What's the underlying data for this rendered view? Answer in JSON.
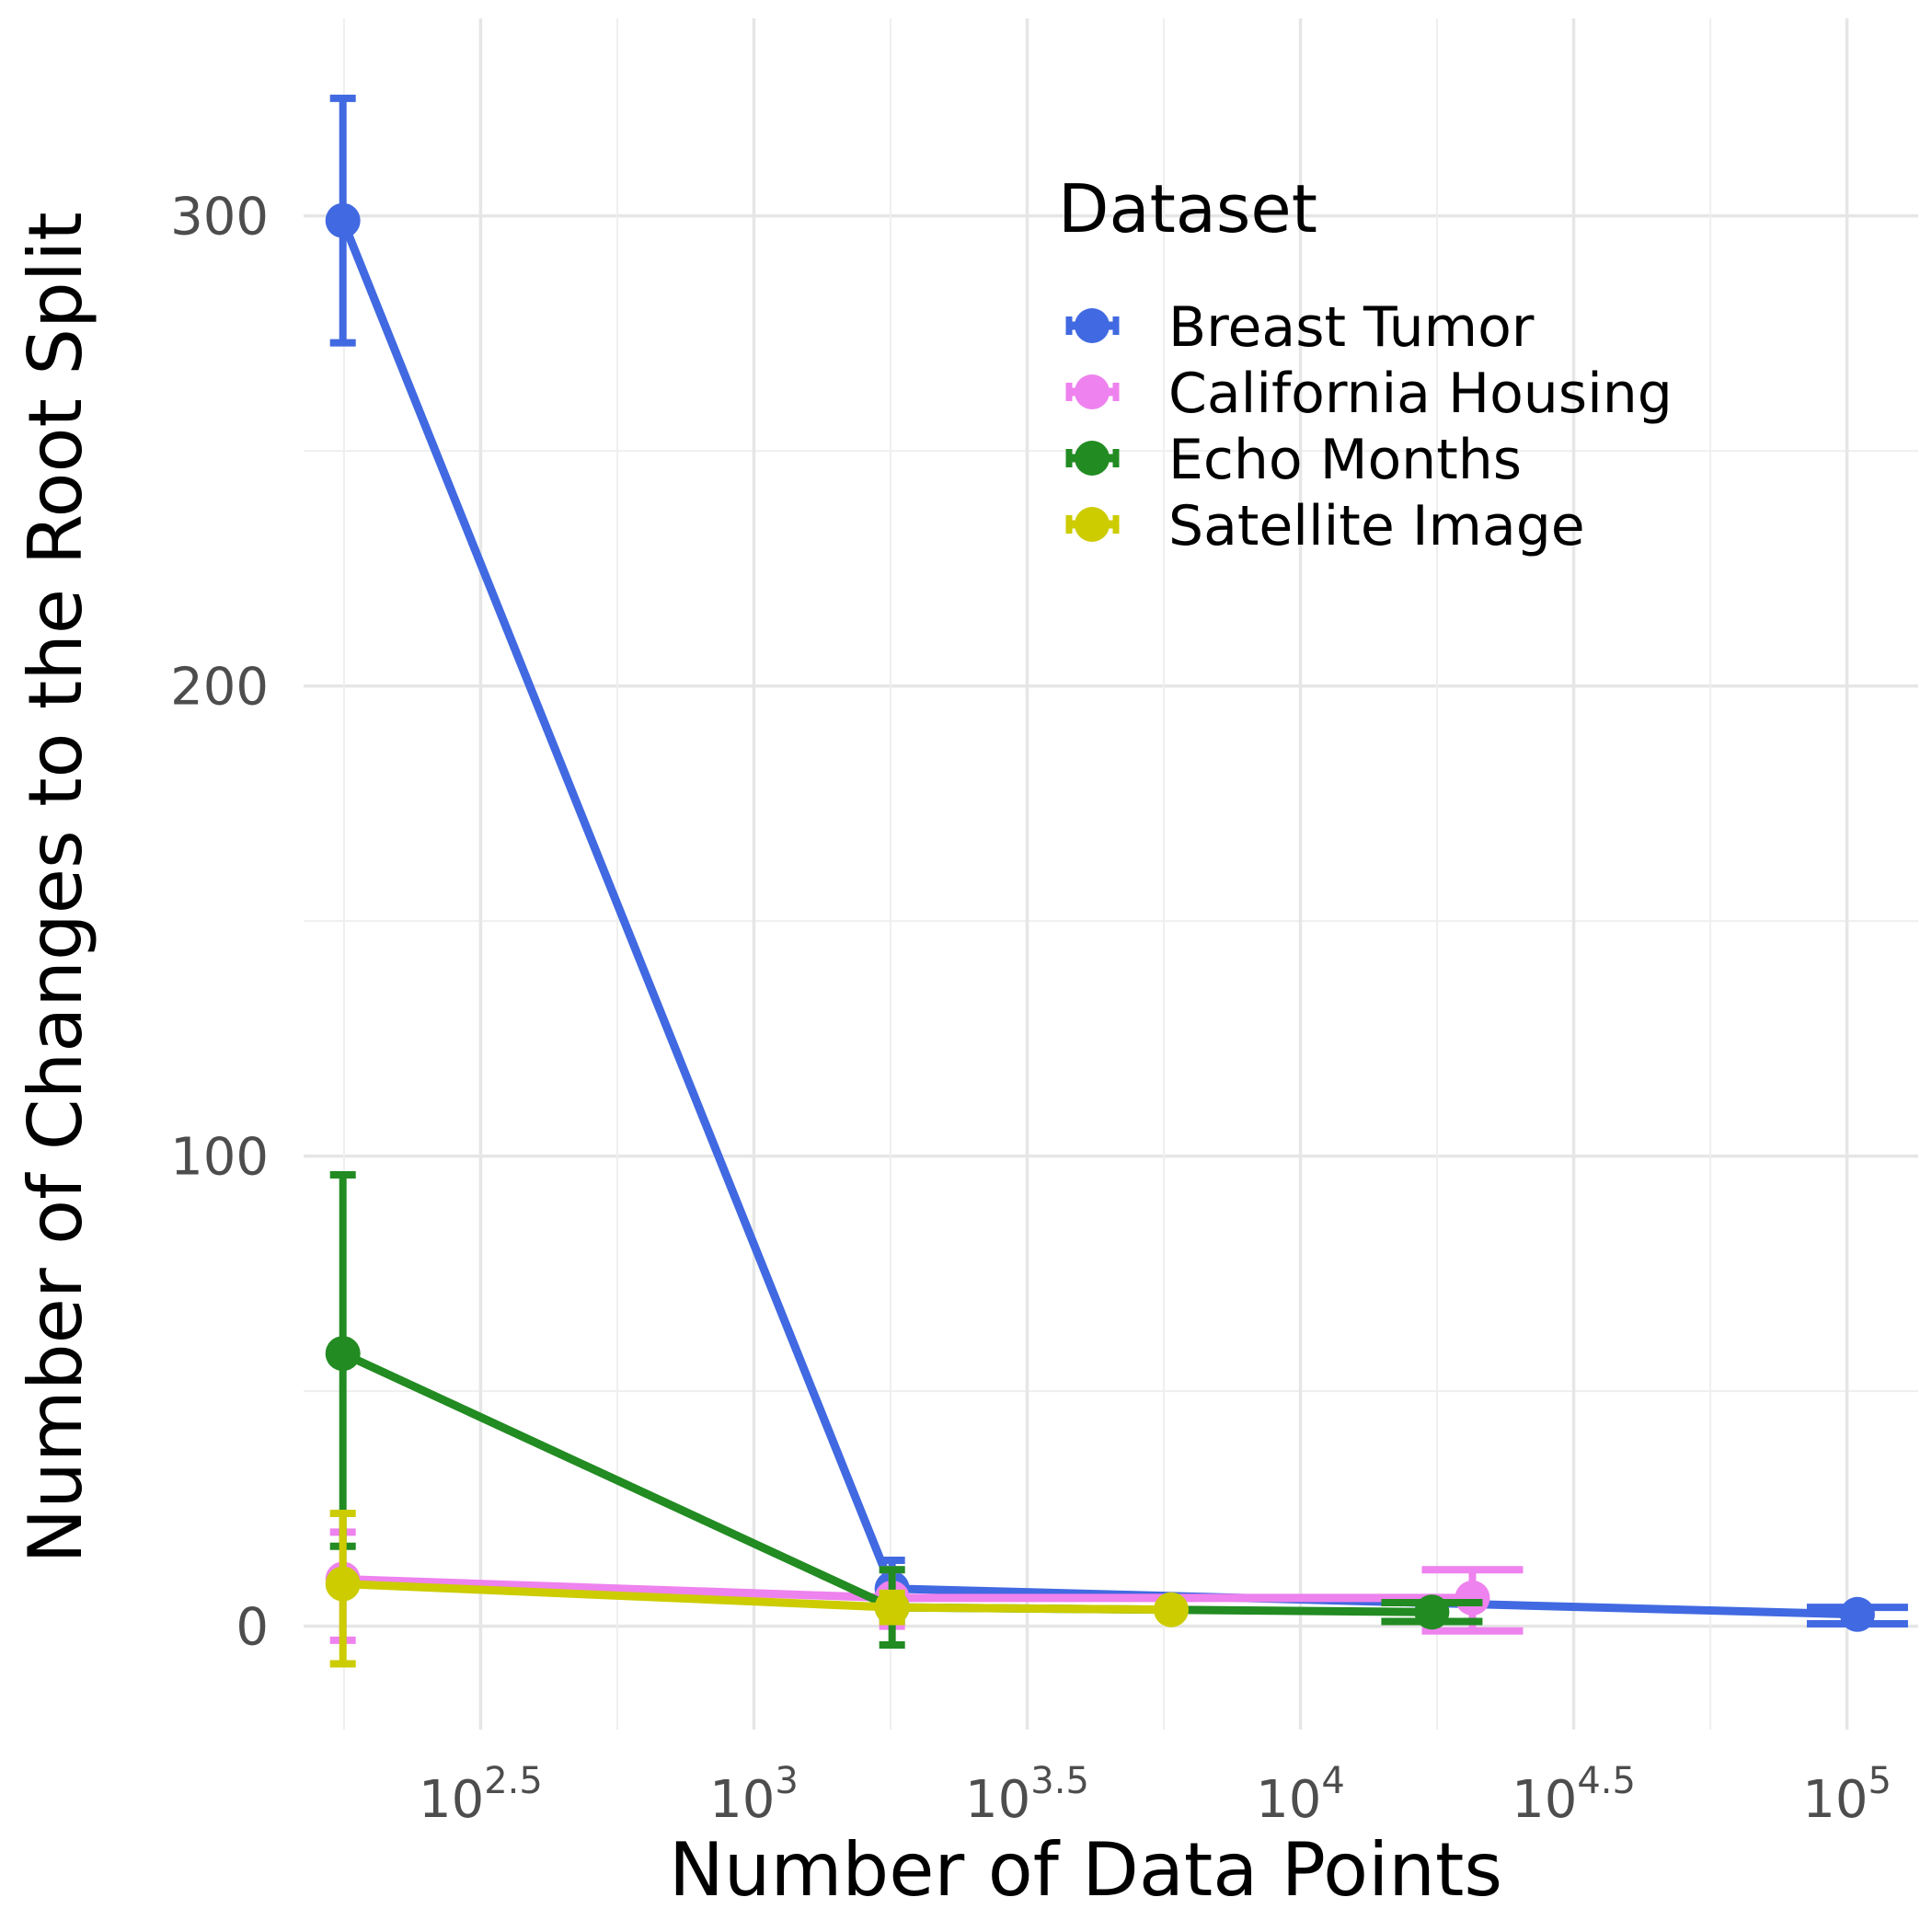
{
  "chart_data": {
    "type": "line",
    "xlabel": "Number of Data Points",
    "ylabel": "Number of Changes to the Root Split",
    "x_scale": "log10",
    "xlim": [
      150,
      135000
    ],
    "ylim": [
      -22,
      342
    ],
    "x_ticks": [
      {
        "value": 316.23,
        "base": "10",
        "exp": "2.5"
      },
      {
        "value": 1000,
        "base": "10",
        "exp": "3"
      },
      {
        "value": 3162.28,
        "base": "10",
        "exp": "3.5"
      },
      {
        "value": 10000,
        "base": "10",
        "exp": "4"
      },
      {
        "value": 31622.78,
        "base": "10",
        "exp": "4.5"
      },
      {
        "value": 100000,
        "base": "10",
        "exp": "5"
      }
    ],
    "y_ticks": [
      0,
      100,
      200,
      300
    ],
    "grid": true,
    "legend": {
      "title": "Dataset",
      "placement": "top-right"
    },
    "series": [
      {
        "name": "Breast Tumor",
        "color": "#4169E1",
        "points": [
          {
            "x": 177,
            "y": 299,
            "lo": 273,
            "hi": 325
          },
          {
            "x": 1790,
            "y": 8,
            "lo": 1,
            "hi": 14
          },
          {
            "x": 104500,
            "y": 2.5,
            "lo": 0.5,
            "hi": 4
          }
        ]
      },
      {
        "name": "California Housing",
        "color": "#EE82EE",
        "points": [
          {
            "x": 177,
            "y": 10,
            "lo": -3,
            "hi": 20
          },
          {
            "x": 1790,
            "y": 6,
            "lo": 0,
            "hi": 12
          },
          {
            "x": 20640,
            "y": 6,
            "lo": -1,
            "hi": 12
          }
        ]
      },
      {
        "name": "Echo Months",
        "color": "#228B22",
        "points": [
          {
            "x": 177,
            "y": 58,
            "lo": 17,
            "hi": 96
          },
          {
            "x": 1790,
            "y": 4,
            "lo": -4,
            "hi": 12
          },
          {
            "x": 17400,
            "y": 3,
            "lo": 1,
            "hi": 5
          }
        ]
      },
      {
        "name": "Satellite Image",
        "color": "#CCCC00",
        "points": [
          {
            "x": 177,
            "y": 9,
            "lo": -8,
            "hi": 24
          },
          {
            "x": 1790,
            "y": 4,
            "lo": 1,
            "hi": 7
          },
          {
            "x": 5800,
            "y": 3.5,
            "lo": 2,
            "hi": 5
          }
        ]
      }
    ]
  }
}
